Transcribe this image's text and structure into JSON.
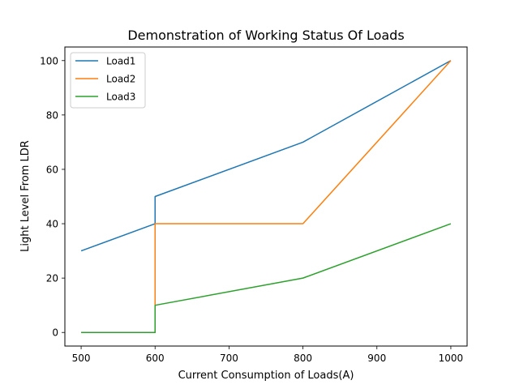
{
  "chart_data": {
    "type": "line",
    "title": "Demonstration of Working Status Of Loads",
    "xlabel": "Current Consumption of Loads(A)",
    "ylabel": "Light Level From LDR",
    "xlim": [
      478,
      1022
    ],
    "ylim": [
      -5,
      105
    ],
    "xticks": [
      500,
      600,
      700,
      800,
      900,
      1000
    ],
    "yticks": [
      0,
      20,
      40,
      60,
      80,
      100
    ],
    "grid": false,
    "legend_position": "top-left",
    "series": [
      {
        "name": "Load1",
        "color": "#1f77b4",
        "x": [
          500,
          600,
          600,
          800,
          1000
        ],
        "y": [
          30,
          40,
          50,
          70,
          100
        ]
      },
      {
        "name": "Load2",
        "color": "#ff7f0e",
        "x": [
          500,
          600,
          600,
          800,
          1000
        ],
        "y": [
          0,
          0,
          40,
          40,
          100
        ]
      },
      {
        "name": "Load3",
        "color": "#2ca02c",
        "x": [
          500,
          600,
          600,
          800,
          1000
        ],
        "y": [
          0,
          0,
          10,
          20,
          40
        ]
      }
    ]
  }
}
